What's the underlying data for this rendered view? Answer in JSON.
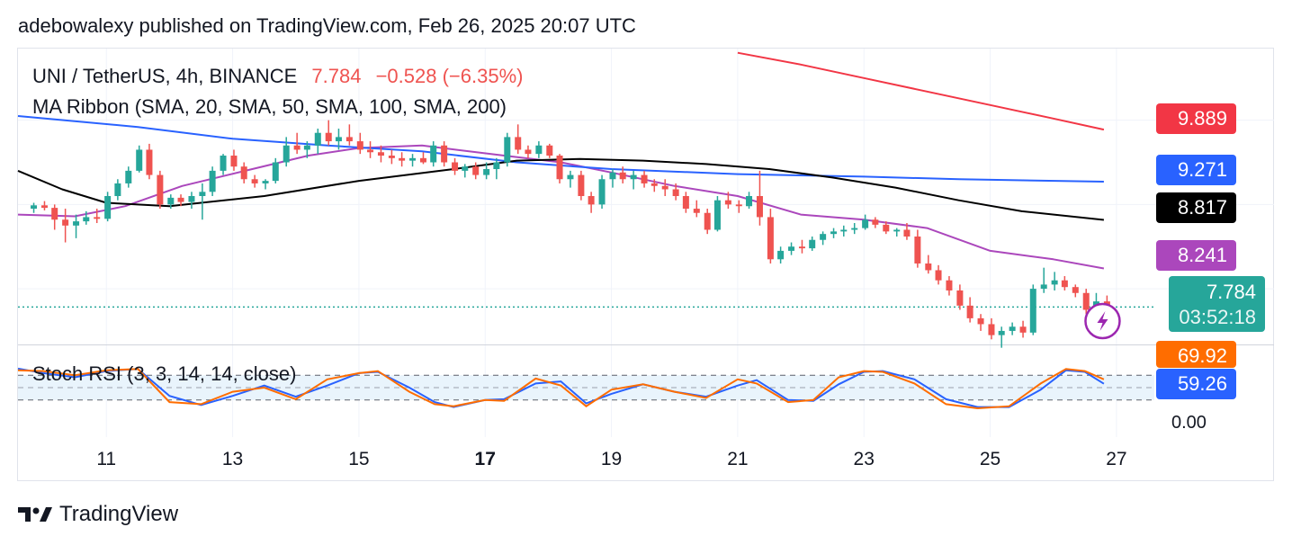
{
  "header": {
    "published": "adebowalexy published on TradingView.com, Feb 26, 2025 20:07 UTC"
  },
  "legend": {
    "symbol": "UNI / TetherUS, 4h, BINANCE",
    "last": "7.784",
    "change": "−0.528 (−6.35%)",
    "ma_ribbon": "MA Ribbon (SMA, 20, SMA, 50, SMA, 100, SMA, 200)",
    "stoch": "Stoch RSI (3, 3, 14, 14, close)"
  },
  "price_axis": {
    "badges": [
      {
        "label": "9.889",
        "color": "#f23645"
      },
      {
        "label": "9.271",
        "color": "#2962ff"
      },
      {
        "label": "8.817",
        "color": "#000000"
      },
      {
        "label": "8.241",
        "color": "#ab47bc"
      }
    ],
    "last_price": "7.784",
    "countdown": "03:52:18",
    "last_color": "#26a69a",
    "hidden_ticks": [
      "10.000",
      "9.000",
      "8.000"
    ]
  },
  "stoch_axis": {
    "k_value": "69.92",
    "k_color": "#ff6d00",
    "d_value": "59.26",
    "d_color": "#2962ff",
    "tick": "0.00"
  },
  "x_axis": {
    "ticks": [
      "11",
      "13",
      "15",
      "17",
      "19",
      "21",
      "23",
      "25",
      "27"
    ],
    "bold": "17"
  },
  "footer": {
    "brand": "TradingView"
  },
  "chart_data": {
    "type": "candlestick",
    "title": "UNI / TetherUS, 4h, BINANCE",
    "x_range_days": [
      9.6,
      27.6
    ],
    "ylim": [
      7.35,
      10.85
    ],
    "colors": {
      "up": "#26a69a",
      "down": "#ef5350",
      "ma20": "#ab47bc",
      "ma50": "#2962ff",
      "ma100": "#000000",
      "ma200": "#f23645"
    },
    "candles": [
      [
        9.85,
        8.95,
        9.02,
        8.9,
        8.99
      ],
      [
        10.02,
        8.99,
        9.04,
        8.93,
        8.96
      ],
      [
        10.18,
        8.96,
        9.0,
        8.7,
        8.82
      ],
      [
        10.35,
        8.82,
        8.95,
        8.55,
        8.75
      ],
      [
        10.52,
        8.75,
        8.88,
        8.6,
        8.8
      ],
      [
        10.68,
        8.8,
        8.92,
        8.76,
        8.85
      ],
      [
        10.85,
        8.85,
        8.95,
        8.78,
        8.83
      ],
      [
        11.02,
        8.83,
        9.15,
        8.8,
        9.1
      ],
      [
        11.18,
        9.1,
        9.3,
        9.05,
        9.25
      ],
      [
        11.35,
        9.25,
        9.45,
        9.2,
        9.4
      ],
      [
        11.52,
        9.4,
        9.7,
        9.38,
        9.65
      ],
      [
        11.68,
        9.65,
        9.72,
        9.3,
        9.35
      ],
      [
        11.85,
        9.35,
        9.4,
        8.95,
        9.0
      ],
      [
        12.02,
        9.0,
        9.12,
        8.95,
        9.08
      ],
      [
        12.18,
        9.08,
        9.12,
        8.98,
        9.03
      ],
      [
        12.35,
        9.03,
        9.15,
        8.95,
        9.1
      ],
      [
        12.52,
        9.1,
        9.25,
        8.82,
        9.15
      ],
      [
        12.68,
        9.15,
        9.45,
        9.1,
        9.4
      ],
      [
        12.85,
        9.4,
        9.6,
        9.35,
        9.58
      ],
      [
        13.02,
        9.58,
        9.65,
        9.4,
        9.45
      ],
      [
        13.18,
        9.45,
        9.5,
        9.25,
        9.3
      ],
      [
        13.35,
        9.3,
        9.35,
        9.2,
        9.25
      ],
      [
        13.52,
        9.25,
        9.3,
        9.18,
        9.28
      ],
      [
        13.68,
        9.28,
        9.55,
        9.25,
        9.5
      ],
      [
        13.85,
        9.5,
        9.8,
        9.45,
        9.7
      ],
      [
        14.02,
        9.7,
        9.85,
        9.6,
        9.65
      ],
      [
        14.18,
        9.65,
        9.75,
        9.55,
        9.7
      ],
      [
        14.35,
        9.7,
        9.9,
        9.6,
        9.85
      ],
      [
        14.52,
        9.85,
        10.0,
        9.7,
        9.75
      ],
      [
        14.68,
        9.75,
        9.9,
        9.65,
        9.8
      ],
      [
        14.85,
        9.8,
        9.95,
        9.7,
        9.75
      ],
      [
        15.02,
        9.75,
        9.85,
        9.6,
        9.65
      ],
      [
        15.18,
        9.65,
        9.75,
        9.55,
        9.62
      ],
      [
        15.35,
        9.62,
        9.7,
        9.5,
        9.58
      ],
      [
        15.52,
        9.58,
        9.65,
        9.48,
        9.55
      ],
      [
        15.68,
        9.55,
        9.62,
        9.45,
        9.52
      ],
      [
        15.85,
        9.52,
        9.6,
        9.45,
        9.55
      ],
      [
        16.02,
        9.55,
        9.62,
        9.48,
        9.5
      ],
      [
        16.18,
        9.5,
        9.75,
        9.45,
        9.7
      ],
      [
        16.35,
        9.7,
        9.75,
        9.45,
        9.5
      ],
      [
        16.52,
        9.5,
        9.55,
        9.35,
        9.4
      ],
      [
        16.68,
        9.4,
        9.48,
        9.32,
        9.45
      ],
      [
        16.85,
        9.45,
        9.5,
        9.3,
        9.35
      ],
      [
        17.02,
        9.35,
        9.5,
        9.3,
        9.42
      ],
      [
        17.18,
        9.42,
        9.55,
        9.3,
        9.5
      ],
      [
        17.35,
        9.5,
        9.85,
        9.45,
        9.8
      ],
      [
        17.52,
        9.8,
        9.95,
        9.6,
        9.65
      ],
      [
        17.68,
        9.65,
        9.7,
        9.55,
        9.6
      ],
      [
        17.85,
        9.6,
        9.75,
        9.55,
        9.7
      ],
      [
        18.02,
        9.7,
        9.72,
        9.55,
        9.58
      ],
      [
        18.18,
        9.58,
        9.6,
        9.25,
        9.3
      ],
      [
        18.35,
        9.3,
        9.4,
        9.2,
        9.35
      ],
      [
        18.52,
        9.35,
        9.4,
        9.05,
        9.1
      ],
      [
        18.68,
        9.1,
        9.15,
        8.9,
        9.0
      ],
      [
        18.85,
        9.0,
        9.35,
        8.95,
        9.3
      ],
      [
        19.02,
        9.3,
        9.42,
        9.2,
        9.38
      ],
      [
        19.18,
        9.38,
        9.45,
        9.25,
        9.3
      ],
      [
        19.35,
        9.3,
        9.4,
        9.18,
        9.35
      ],
      [
        19.52,
        9.35,
        9.4,
        9.2,
        9.25
      ],
      [
        19.68,
        9.25,
        9.3,
        9.15,
        9.22
      ],
      [
        19.85,
        9.22,
        9.3,
        9.1,
        9.18
      ],
      [
        20.02,
        9.18,
        9.25,
        9.05,
        9.1
      ],
      [
        20.18,
        9.1,
        9.15,
        8.9,
        8.95
      ],
      [
        20.35,
        8.95,
        9.05,
        8.85,
        8.9
      ],
      [
        20.52,
        8.9,
        8.95,
        8.65,
        8.7
      ],
      [
        20.68,
        8.7,
        9.1,
        8.68,
        9.05
      ],
      [
        20.85,
        9.05,
        9.15,
        8.95,
        9.0
      ],
      [
        21.02,
        9.0,
        9.05,
        8.9,
        8.98
      ],
      [
        21.18,
        8.98,
        9.15,
        8.95,
        9.1
      ],
      [
        21.35,
        9.1,
        9.4,
        8.75,
        8.85
      ],
      [
        21.52,
        8.85,
        8.95,
        8.3,
        8.35
      ],
      [
        21.68,
        8.35,
        8.5,
        8.3,
        8.45
      ],
      [
        21.85,
        8.45,
        8.55,
        8.4,
        8.5
      ],
      [
        22.02,
        8.5,
        8.58,
        8.42,
        8.48
      ],
      [
        22.18,
        8.48,
        8.62,
        8.45,
        8.58
      ],
      [
        22.35,
        8.58,
        8.68,
        8.52,
        8.65
      ],
      [
        22.52,
        8.65,
        8.72,
        8.6,
        8.68
      ],
      [
        22.68,
        8.68,
        8.75,
        8.62,
        8.7
      ],
      [
        22.85,
        8.7,
        8.78,
        8.65,
        8.72
      ],
      [
        23.02,
        8.72,
        8.88,
        8.7,
        8.82
      ],
      [
        23.18,
        8.82,
        8.85,
        8.72,
        8.76
      ],
      [
        23.35,
        8.76,
        8.8,
        8.65,
        8.68
      ],
      [
        23.52,
        8.68,
        8.72,
        8.62,
        8.7
      ],
      [
        23.68,
        8.7,
        8.78,
        8.58,
        8.62
      ],
      [
        23.85,
        8.62,
        8.7,
        8.25,
        8.3
      ],
      [
        24.02,
        8.3,
        8.4,
        8.18,
        8.22
      ],
      [
        24.18,
        8.22,
        8.28,
        8.05,
        8.1
      ],
      [
        24.35,
        8.1,
        8.15,
        7.92,
        7.98
      ],
      [
        24.52,
        7.98,
        8.05,
        7.75,
        7.8
      ],
      [
        24.68,
        7.8,
        7.9,
        7.6,
        7.65
      ],
      [
        24.85,
        7.65,
        7.7,
        7.5,
        7.58
      ],
      [
        25.02,
        7.58,
        7.65,
        7.4,
        7.45
      ],
      [
        25.18,
        7.45,
        7.55,
        7.3,
        7.5
      ],
      [
        25.35,
        7.5,
        7.6,
        7.45,
        7.55
      ],
      [
        25.52,
        7.55,
        7.62,
        7.42,
        7.48
      ],
      [
        25.68,
        7.48,
        8.05,
        7.45,
        8.0
      ],
      [
        25.85,
        8.0,
        8.25,
        7.95,
        8.05
      ],
      [
        26.02,
        8.05,
        8.2,
        7.98,
        8.1
      ],
      [
        26.18,
        8.1,
        8.15,
        7.98,
        8.02
      ],
      [
        26.35,
        8.02,
        8.05,
        7.9,
        7.95
      ],
      [
        26.52,
        7.95,
        8.0,
        7.7,
        7.75
      ],
      [
        26.68,
        7.75,
        7.95,
        7.65,
        7.85
      ],
      [
        26.85,
        7.85,
        7.92,
        7.78,
        7.784
      ]
    ],
    "ma": {
      "ma20": [
        [
          9.6,
          8.88
        ],
        [
          10.5,
          8.86
        ],
        [
          11.3,
          8.98
        ],
        [
          12.2,
          9.22
        ],
        [
          13.2,
          9.4
        ],
        [
          14.2,
          9.58
        ],
        [
          15.0,
          9.67
        ],
        [
          16.0,
          9.7
        ],
        [
          17.3,
          9.58
        ],
        [
          18.2,
          9.5
        ],
        [
          19.0,
          9.38
        ],
        [
          20.0,
          9.22
        ],
        [
          21.0,
          9.1
        ],
        [
          22.0,
          8.88
        ],
        [
          23.0,
          8.82
        ],
        [
          24.0,
          8.72
        ],
        [
          25.0,
          8.45
        ],
        [
          26.0,
          8.35
        ],
        [
          26.8,
          8.241
        ]
      ],
      "ma50": [
        [
          9.6,
          10.05
        ],
        [
          11.5,
          9.92
        ],
        [
          13.0,
          9.78
        ],
        [
          14.5,
          9.7
        ],
        [
          16.0,
          9.63
        ],
        [
          17.5,
          9.5
        ],
        [
          19.0,
          9.42
        ],
        [
          21.0,
          9.36
        ],
        [
          23.0,
          9.33
        ],
        [
          24.5,
          9.3
        ],
        [
          26.8,
          9.271
        ]
      ],
      "ma100": [
        [
          9.6,
          9.4
        ],
        [
          10.3,
          9.18
        ],
        [
          11.0,
          9.02
        ],
        [
          12.0,
          8.98
        ],
        [
          13.5,
          9.1
        ],
        [
          15.0,
          9.28
        ],
        [
          16.5,
          9.42
        ],
        [
          17.5,
          9.52
        ],
        [
          18.5,
          9.54
        ],
        [
          19.5,
          9.52
        ],
        [
          20.5,
          9.48
        ],
        [
          21.5,
          9.42
        ],
        [
          22.5,
          9.32
        ],
        [
          23.5,
          9.2
        ],
        [
          24.5,
          9.05
        ],
        [
          25.5,
          8.92
        ],
        [
          26.8,
          8.817
        ]
      ],
      "ma200": [
        [
          21.0,
          10.8
        ],
        [
          22.0,
          10.66
        ],
        [
          23.0,
          10.5
        ],
        [
          24.0,
          10.34
        ],
        [
          25.0,
          10.18
        ],
        [
          26.0,
          10.02
        ],
        [
          26.8,
          9.889
        ]
      ]
    },
    "stoch_rsi": {
      "ylim": [
        0,
        100
      ],
      "bands": [
        20,
        50,
        80
      ],
      "k": [
        [
          9.6,
          92
        ],
        [
          10.0,
          90
        ],
        [
          10.5,
          80
        ],
        [
          11.0,
          92
        ],
        [
          11.5,
          95
        ],
        [
          12.0,
          15
        ],
        [
          12.5,
          10
        ],
        [
          13.0,
          40
        ],
        [
          13.5,
          50
        ],
        [
          14.0,
          22
        ],
        [
          14.5,
          70
        ],
        [
          15.0,
          85
        ],
        [
          15.3,
          90
        ],
        [
          15.8,
          40
        ],
        [
          16.2,
          10
        ],
        [
          16.5,
          5
        ],
        [
          17.0,
          20
        ],
        [
          17.3,
          18
        ],
        [
          17.8,
          72
        ],
        [
          18.2,
          55
        ],
        [
          18.6,
          5
        ],
        [
          19.0,
          45
        ],
        [
          19.5,
          58
        ],
        [
          20.0,
          40
        ],
        [
          20.5,
          25
        ],
        [
          21.0,
          70
        ],
        [
          21.3,
          60
        ],
        [
          21.8,
          15
        ],
        [
          22.2,
          20
        ],
        [
          22.6,
          75
        ],
        [
          23.0,
          90
        ],
        [
          23.3,
          88
        ],
        [
          23.8,
          60
        ],
        [
          24.3,
          10
        ],
        [
          24.8,
          0
        ],
        [
          25.3,
          5
        ],
        [
          25.8,
          60
        ],
        [
          26.2,
          95
        ],
        [
          26.5,
          90
        ],
        [
          26.8,
          69.92
        ]
      ],
      "d": [
        [
          9.6,
          96
        ],
        [
          10.0,
          85
        ],
        [
          10.5,
          75
        ],
        [
          11.0,
          90
        ],
        [
          11.5,
          95
        ],
        [
          12.0,
          30
        ],
        [
          12.5,
          8
        ],
        [
          13.0,
          30
        ],
        [
          13.5,
          55
        ],
        [
          14.0,
          28
        ],
        [
          14.5,
          55
        ],
        [
          15.0,
          85
        ],
        [
          15.3,
          88
        ],
        [
          15.8,
          50
        ],
        [
          16.2,
          15
        ],
        [
          16.5,
          3
        ],
        [
          17.0,
          20
        ],
        [
          17.3,
          22
        ],
        [
          17.8,
          60
        ],
        [
          18.2,
          65
        ],
        [
          18.6,
          12
        ],
        [
          19.0,
          35
        ],
        [
          19.5,
          58
        ],
        [
          20.0,
          40
        ],
        [
          20.5,
          28
        ],
        [
          21.0,
          55
        ],
        [
          21.3,
          68
        ],
        [
          21.8,
          20
        ],
        [
          22.2,
          18
        ],
        [
          22.6,
          58
        ],
        [
          23.0,
          88
        ],
        [
          23.3,
          90
        ],
        [
          23.8,
          70
        ],
        [
          24.3,
          22
        ],
        [
          24.8,
          3
        ],
        [
          25.3,
          3
        ],
        [
          25.8,
          45
        ],
        [
          26.2,
          92
        ],
        [
          26.5,
          88
        ],
        [
          26.8,
          59.26
        ]
      ]
    }
  }
}
